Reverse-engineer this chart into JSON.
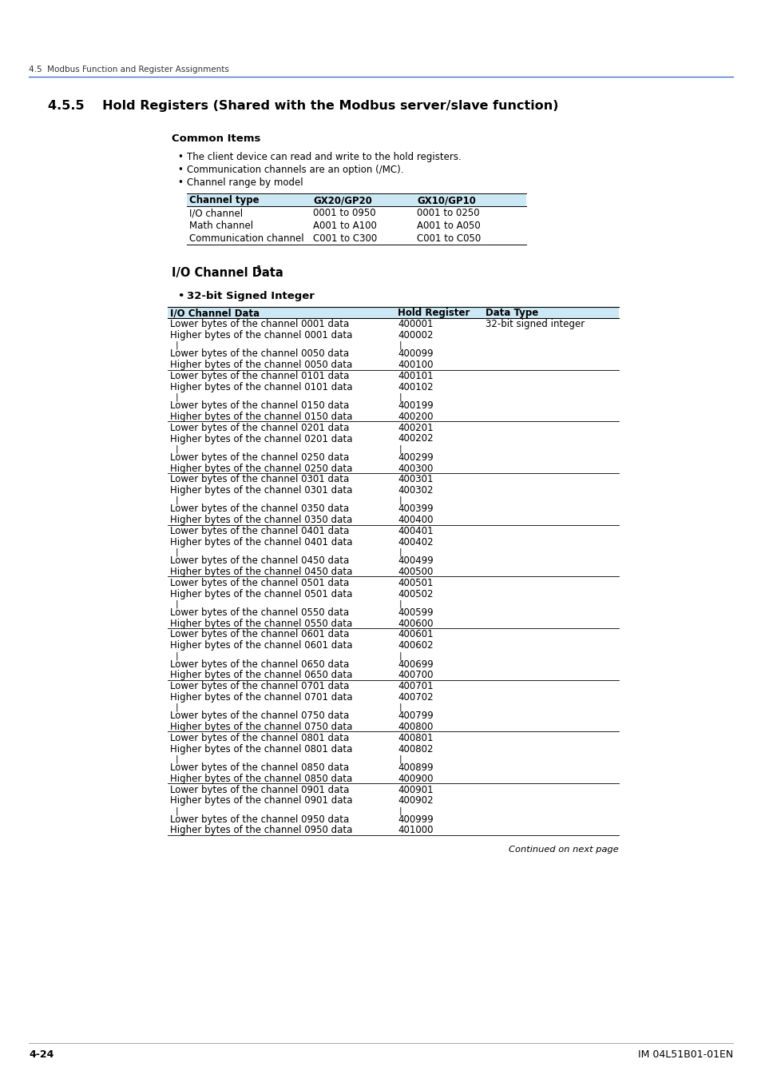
{
  "page_header": "4.5  Modbus Function and Register Assignments",
  "section_title": "4.5.5    Hold Registers (Shared with the Modbus server/slave function)",
  "common_items_title": "Common Items",
  "bullets": [
    "The client device can read and write to the hold registers.",
    "Communication channels are an option (/MC).",
    "Channel range by model"
  ],
  "channel_table_headers": [
    "Channel type",
    "GX20/GP20",
    "GX10/GP10"
  ],
  "channel_table_rows": [
    [
      "I/O channel",
      "0001 to 0950",
      "0001 to 0250"
    ],
    [
      "Math channel",
      "A001 to A100",
      "A001 to A050"
    ],
    [
      "Communication channel",
      "C001 to C300",
      "C001 to C050"
    ]
  ],
  "io_channel_title": "I/O Channel Data",
  "io_channel_superscript": "1",
  "signed_int_title": "32-bit Signed Integer",
  "main_table_headers": [
    "I/O Channel Data",
    "Hold Register",
    "Data Type"
  ],
  "main_table_rows": [
    [
      "Lower bytes of the channel 0001 data",
      "400001",
      "32-bit signed integer",
      false
    ],
    [
      "Higher bytes of the channel 0001 data",
      "400002",
      "",
      false
    ],
    [
      "|",
      "|",
      "",
      false
    ],
    [
      "Lower bytes of the channel 0050 data",
      "400099",
      "",
      false
    ],
    [
      "Higher bytes of the channel 0050 data",
      "400100",
      "",
      true
    ],
    [
      "Lower bytes of the channel 0101 data",
      "400101",
      "",
      false
    ],
    [
      "Higher bytes of the channel 0101 data",
      "400102",
      "",
      false
    ],
    [
      "|",
      "|",
      "",
      false
    ],
    [
      "Lower bytes of the channel 0150 data",
      "400199",
      "",
      false
    ],
    [
      "Higher bytes of the channel 0150 data",
      "400200",
      "",
      true
    ],
    [
      "Lower bytes of the channel 0201 data",
      "400201",
      "",
      false
    ],
    [
      "Higher bytes of the channel 0201 data",
      "400202",
      "",
      false
    ],
    [
      "|",
      "|",
      "",
      false
    ],
    [
      "Lower bytes of the channel 0250 data",
      "400299",
      "",
      false
    ],
    [
      "Higher bytes of the channel 0250 data",
      "400300",
      "",
      true
    ],
    [
      "Lower bytes of the channel 0301 data",
      "400301",
      "",
      false
    ],
    [
      "Higher bytes of the channel 0301 data",
      "400302",
      "",
      false
    ],
    [
      "|",
      "|",
      "",
      false
    ],
    [
      "Lower bytes of the channel 0350 data",
      "400399",
      "",
      false
    ],
    [
      "Higher bytes of the channel 0350 data",
      "400400",
      "",
      true
    ],
    [
      "Lower bytes of the channel 0401 data",
      "400401",
      "",
      false
    ],
    [
      "Higher bytes of the channel 0401 data",
      "400402",
      "",
      false
    ],
    [
      "|",
      "|",
      "",
      false
    ],
    [
      "Lower bytes of the channel 0450 data",
      "400499",
      "",
      false
    ],
    [
      "Higher bytes of the channel 0450 data",
      "400500",
      "",
      true
    ],
    [
      "Lower bytes of the channel 0501 data",
      "400501",
      "",
      false
    ],
    [
      "Higher bytes of the channel 0501 data",
      "400502",
      "",
      false
    ],
    [
      "|",
      "|",
      "",
      false
    ],
    [
      "Lower bytes of the channel 0550 data",
      "400599",
      "",
      false
    ],
    [
      "Higher bytes of the channel 0550 data",
      "400600",
      "",
      true
    ],
    [
      "Lower bytes of the channel 0601 data",
      "400601",
      "",
      false
    ],
    [
      "Higher bytes of the channel 0601 data",
      "400602",
      "",
      false
    ],
    [
      "|",
      "|",
      "",
      false
    ],
    [
      "Lower bytes of the channel 0650 data",
      "400699",
      "",
      false
    ],
    [
      "Higher bytes of the channel 0650 data",
      "400700",
      "",
      true
    ],
    [
      "Lower bytes of the channel 0701 data",
      "400701",
      "",
      false
    ],
    [
      "Higher bytes of the channel 0701 data",
      "400702",
      "",
      false
    ],
    [
      "|",
      "|",
      "",
      false
    ],
    [
      "Lower bytes of the channel 0750 data",
      "400799",
      "",
      false
    ],
    [
      "Higher bytes of the channel 0750 data",
      "400800",
      "",
      true
    ],
    [
      "Lower bytes of the channel 0801 data",
      "400801",
      "",
      false
    ],
    [
      "Higher bytes of the channel 0801 data",
      "400802",
      "",
      false
    ],
    [
      "|",
      "|",
      "",
      false
    ],
    [
      "Lower bytes of the channel 0850 data",
      "400899",
      "",
      false
    ],
    [
      "Higher bytes of the channel 0850 data",
      "400900",
      "",
      true
    ],
    [
      "Lower bytes of the channel 0901 data",
      "400901",
      "",
      false
    ],
    [
      "Higher bytes of the channel 0901 data",
      "400902",
      "",
      false
    ],
    [
      "|",
      "|",
      "",
      false
    ],
    [
      "Lower bytes of the channel 0950 data",
      "400999",
      "",
      false
    ],
    [
      "Higher bytes of the channel 0950 data",
      "401000",
      "",
      false
    ]
  ],
  "footer_left": "4-24",
  "footer_right": "IM 04L51B01-01EN",
  "continued_text": "Continued on next page",
  "header_bg_color": "#cce8f4",
  "table_line_color": "#000000",
  "text_color": "#000000",
  "bg_color": "#ffffff",
  "blue_line_color": "#4472c4"
}
